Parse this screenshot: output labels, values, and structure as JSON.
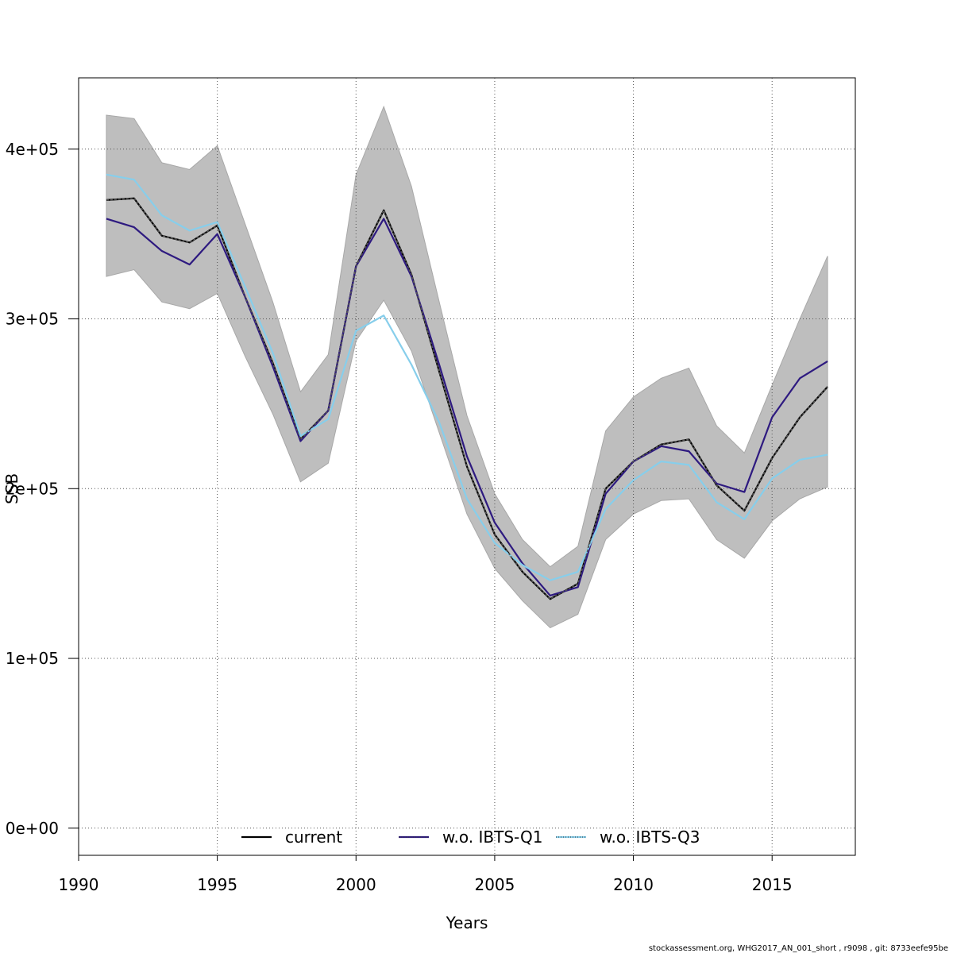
{
  "chart_data": {
    "type": "line",
    "xlabel": "Years",
    "ylabel": "SSB",
    "xlim": [
      1990,
      2018
    ],
    "ylim": [
      -16000,
      442000
    ],
    "x_ticks": [
      1990,
      1995,
      2000,
      2005,
      2010,
      2015
    ],
    "x_tick_labels": [
      "1990",
      "1995",
      "2000",
      "2005",
      "2010",
      "2015"
    ],
    "y_ticks": [
      0,
      100000,
      200000,
      300000,
      400000
    ],
    "y_tick_labels": [
      "0e+00",
      "1e+05",
      "2e+05",
      "3e+05",
      "4e+05"
    ],
    "grid": true,
    "legend_position": "bottom",
    "x": [
      1991,
      1992,
      1993,
      1994,
      1995,
      1996,
      1997,
      1998,
      1999,
      2000,
      2001,
      2002,
      2003,
      2004,
      2005,
      2006,
      2007,
      2008,
      2009,
      2010,
      2011,
      2012,
      2013,
      2014,
      2015,
      2016,
      2017
    ],
    "confidence_band": {
      "color": "#bebebe",
      "upper": [
        420000,
        418000,
        392000,
        388000,
        402000,
        356000,
        310000,
        257000,
        279000,
        385000,
        425000,
        378000,
        310000,
        243000,
        197000,
        170000,
        154000,
        166000,
        234000,
        254000,
        265000,
        271000,
        237000,
        221000,
        261000,
        300000,
        337000
      ],
      "lower": [
        325000,
        329000,
        310000,
        306000,
        315000,
        278000,
        244000,
        204000,
        215000,
        287000,
        311000,
        281000,
        233000,
        185000,
        153000,
        134000,
        118000,
        126000,
        170000,
        185000,
        193000,
        194000,
        170000,
        159000,
        181000,
        194000,
        201000
      ]
    },
    "series": [
      {
        "name": "current",
        "color": "#000000",
        "values": [
          370000,
          371000,
          349000,
          345000,
          355000,
          313000,
          274000,
          229000,
          246000,
          331000,
          364000,
          326000,
          269000,
          213000,
          173000,
          151000,
          135000,
          144000,
          200000,
          216000,
          226000,
          229000,
          202000,
          187000,
          218000,
          242000,
          260000
        ]
      },
      {
        "name": "w.o. IBTS-Q1",
        "color": "#2e1a80",
        "values": [
          359000,
          354000,
          340000,
          332000,
          350000,
          313000,
          272000,
          228000,
          246000,
          331000,
          359000,
          325000,
          273000,
          219000,
          180000,
          156000,
          137000,
          142000,
          197000,
          216000,
          225000,
          222000,
          203000,
          198000,
          242000,
          265000,
          275000
        ]
      },
      {
        "name": "w.o. IBTS-Q3",
        "color": "#87ceeb",
        "values": [
          385000,
          382000,
          361000,
          352000,
          357000,
          319000,
          280000,
          231000,
          241000,
          293000,
          302000,
          273000,
          239000,
          194000,
          168000,
          155000,
          146000,
          151000,
          188000,
          205000,
          216000,
          214000,
          192000,
          182000,
          206000,
          217000,
          220000
        ]
      }
    ]
  },
  "footer_text": "stockassessment.org, WHG2017_AN_001_short , r9098 , git: 8733eefe95be"
}
